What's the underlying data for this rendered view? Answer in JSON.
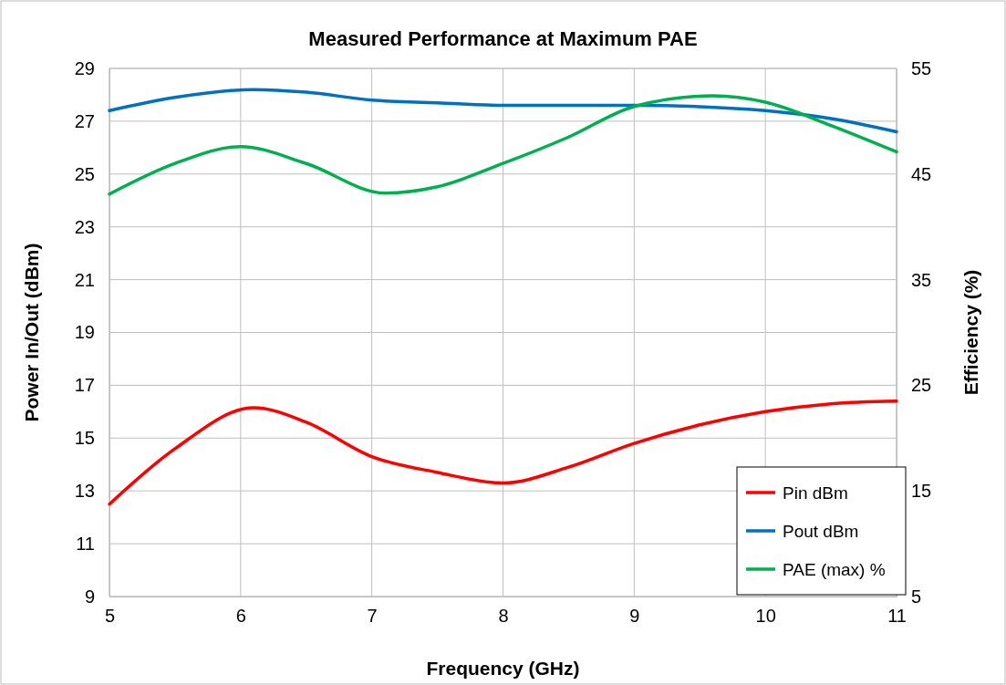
{
  "chart_data": {
    "type": "line",
    "title": "Measured Performance at Maximum PAE",
    "xlabel": "Frequency (GHz)",
    "ylabel": "Power In/Out  (dBm)",
    "y2label": "Efficiency (%)",
    "xlim": [
      5,
      11
    ],
    "xticks": [
      5,
      6,
      7,
      8,
      9,
      10,
      11
    ],
    "ylim": [
      9,
      29
    ],
    "yticks": [
      9,
      11,
      13,
      15,
      17,
      19,
      21,
      23,
      25,
      27,
      29
    ],
    "y2lim": [
      5,
      55
    ],
    "y2ticks": [
      5,
      15,
      25,
      35,
      45,
      55
    ],
    "grid": true,
    "legend": "bottom right",
    "line_style": "solid",
    "marker": "none",
    "series": [
      {
        "name": "Pin dBm",
        "color": "#ff0000",
        "x": [
          5,
          5.5,
          6.1,
          6.5,
          7,
          7.5,
          8,
          8.5,
          9,
          9.5,
          10,
          10.5,
          11
        ],
        "values": [
          12.5,
          14.6,
          16.15,
          15.6,
          14.3,
          13.7,
          13.3,
          13.9,
          14.8,
          15.5,
          16.0,
          16.3,
          16.4
        ]
      },
      {
        "name": "Pout dBm",
        "color": "#0070c0",
        "x": [
          5,
          5.5,
          6.1,
          6.5,
          7,
          7.5,
          8,
          8.5,
          9,
          9.5,
          10,
          10.5,
          11
        ],
        "values": [
          27.4,
          27.9,
          28.2,
          28.1,
          27.8,
          27.7,
          27.6,
          27.6,
          27.6,
          27.55,
          27.4,
          27.1,
          26.6
        ]
      },
      {
        "name": "PAE (max) %",
        "color": "#00b050",
        "axis": "y2",
        "x": [
          5,
          5.5,
          6,
          6.5,
          7.1,
          7.5,
          8,
          8.5,
          9,
          9.6,
          10,
          10.5,
          11
        ],
        "values": [
          43.1,
          46.0,
          47.6,
          46.0,
          43.2,
          43.8,
          46.0,
          48.5,
          51.4,
          52.4,
          51.8,
          49.6,
          47.1
        ]
      }
    ]
  }
}
